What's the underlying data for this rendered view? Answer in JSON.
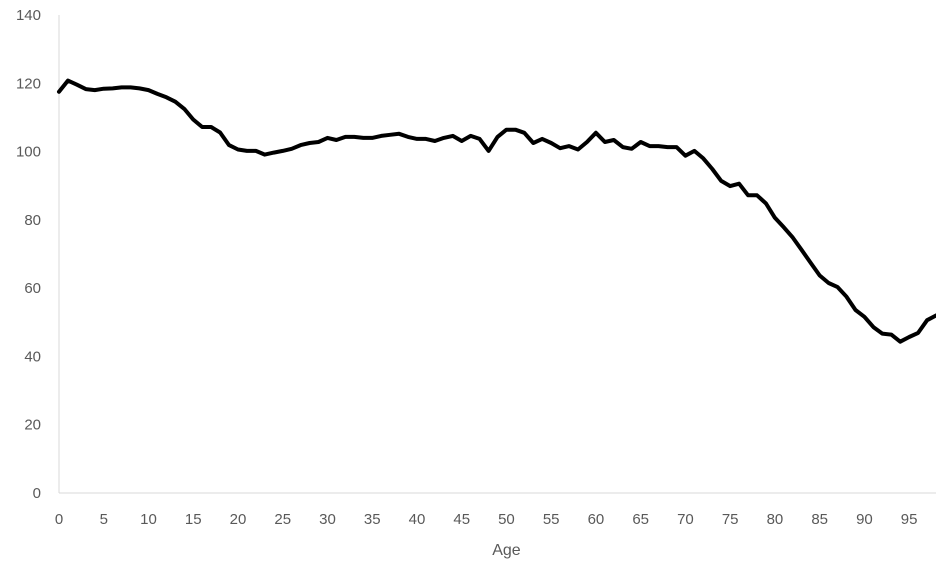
{
  "chart_data": {
    "type": "line",
    "title": "",
    "xlabel": "Age",
    "ylabel": "",
    "xlim": [
      0,
      98
    ],
    "ylim": [
      0,
      140
    ],
    "x_ticks": [
      0,
      5,
      10,
      15,
      20,
      25,
      30,
      35,
      40,
      45,
      50,
      55,
      60,
      65,
      70,
      75,
      80,
      85,
      90,
      95
    ],
    "y_ticks": [
      0,
      20,
      40,
      60,
      80,
      100,
      120,
      140
    ],
    "grid": false,
    "legend": "none",
    "series": [
      {
        "color": "#000000",
        "x": [
          0,
          1,
          2,
          3,
          4,
          5,
          6,
          7,
          8,
          9,
          10,
          11,
          12,
          13,
          14,
          15,
          16,
          17,
          18,
          19,
          20,
          21,
          22,
          23,
          24,
          25,
          26,
          27,
          28,
          29,
          30,
          31,
          32,
          33,
          34,
          35,
          36,
          37,
          38,
          39,
          40,
          41,
          42,
          43,
          44,
          45,
          46,
          47,
          48,
          49,
          50,
          51,
          52,
          53,
          54,
          55,
          56,
          57,
          58,
          59,
          60,
          61,
          62,
          63,
          64,
          65,
          66,
          67,
          68,
          69,
          70,
          71,
          72,
          73,
          74,
          75,
          76,
          77,
          78,
          79,
          80,
          81,
          82,
          83,
          84,
          85,
          86,
          87,
          88,
          89,
          90,
          91,
          92,
          93,
          94,
          95,
          96,
          97,
          98
        ],
        "values": [
          117.5,
          120.8,
          119.6,
          118.3,
          118.0,
          118.4,
          118.5,
          118.8,
          118.8,
          118.5,
          118.0,
          116.9,
          115.9,
          114.6,
          112.5,
          109.4,
          107.2,
          107.2,
          105.6,
          101.9,
          100.6,
          100.2,
          100.2,
          99.1,
          99.7,
          100.2,
          100.8,
          101.9,
          102.5,
          102.8,
          104.0,
          103.4,
          104.3,
          104.3,
          104.0,
          104.0,
          104.6,
          104.9,
          105.2,
          104.3,
          103.7,
          103.7,
          103.1,
          104.0,
          104.6,
          103.1,
          104.6,
          103.7,
          100.2,
          104.3,
          106.4,
          106.4,
          105.5,
          102.5,
          103.7,
          102.5,
          101.0,
          101.6,
          100.6,
          102.8,
          105.5,
          102.8,
          103.4,
          101.3,
          100.8,
          102.8,
          101.6,
          101.6,
          101.3,
          101.3,
          98.8,
          100.2,
          98.0,
          94.9,
          91.4,
          89.9,
          90.6,
          87.2,
          87.2,
          84.8,
          80.6,
          77.8,
          74.8,
          71.1,
          67.4,
          63.7,
          61.5,
          60.3,
          57.5,
          53.6,
          51.6,
          48.6,
          46.7,
          46.4,
          44.3,
          45.7,
          46.9,
          50.6,
          52.0
        ]
      }
    ]
  }
}
